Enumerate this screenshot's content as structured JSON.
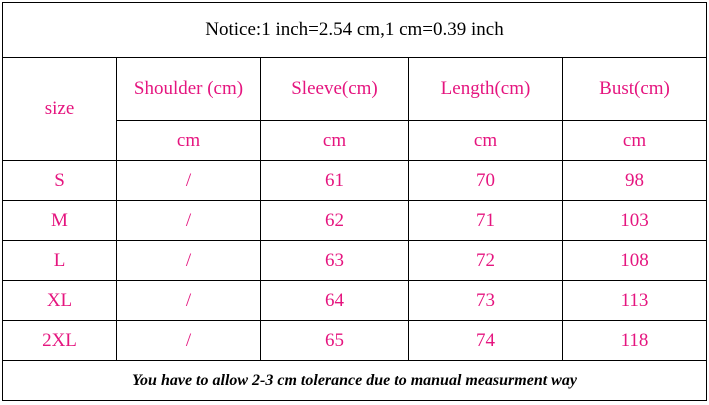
{
  "notice": "Notice:1 inch=2.54 cm,1 cm=0.39 inch",
  "table": {
    "header": [
      "size",
      "Shoulder (cm)",
      "Sleeve(cm)",
      "Length(cm)",
      "Bust(cm)"
    ],
    "units": [
      "cm",
      "cm",
      "cm",
      "cm"
    ],
    "rows": [
      [
        "S",
        "/",
        "61",
        "70",
        "98"
      ],
      [
        "M",
        "/",
        "62",
        "71",
        "103"
      ],
      [
        "L",
        "/",
        "63",
        "72",
        "108"
      ],
      [
        "XL",
        "/",
        "64",
        "73",
        "113"
      ],
      [
        "2XL",
        "/",
        "65",
        "74",
        "118"
      ]
    ]
  },
  "footer": "You have to allow 2-3 cm tolerance due to manual measurment way"
}
